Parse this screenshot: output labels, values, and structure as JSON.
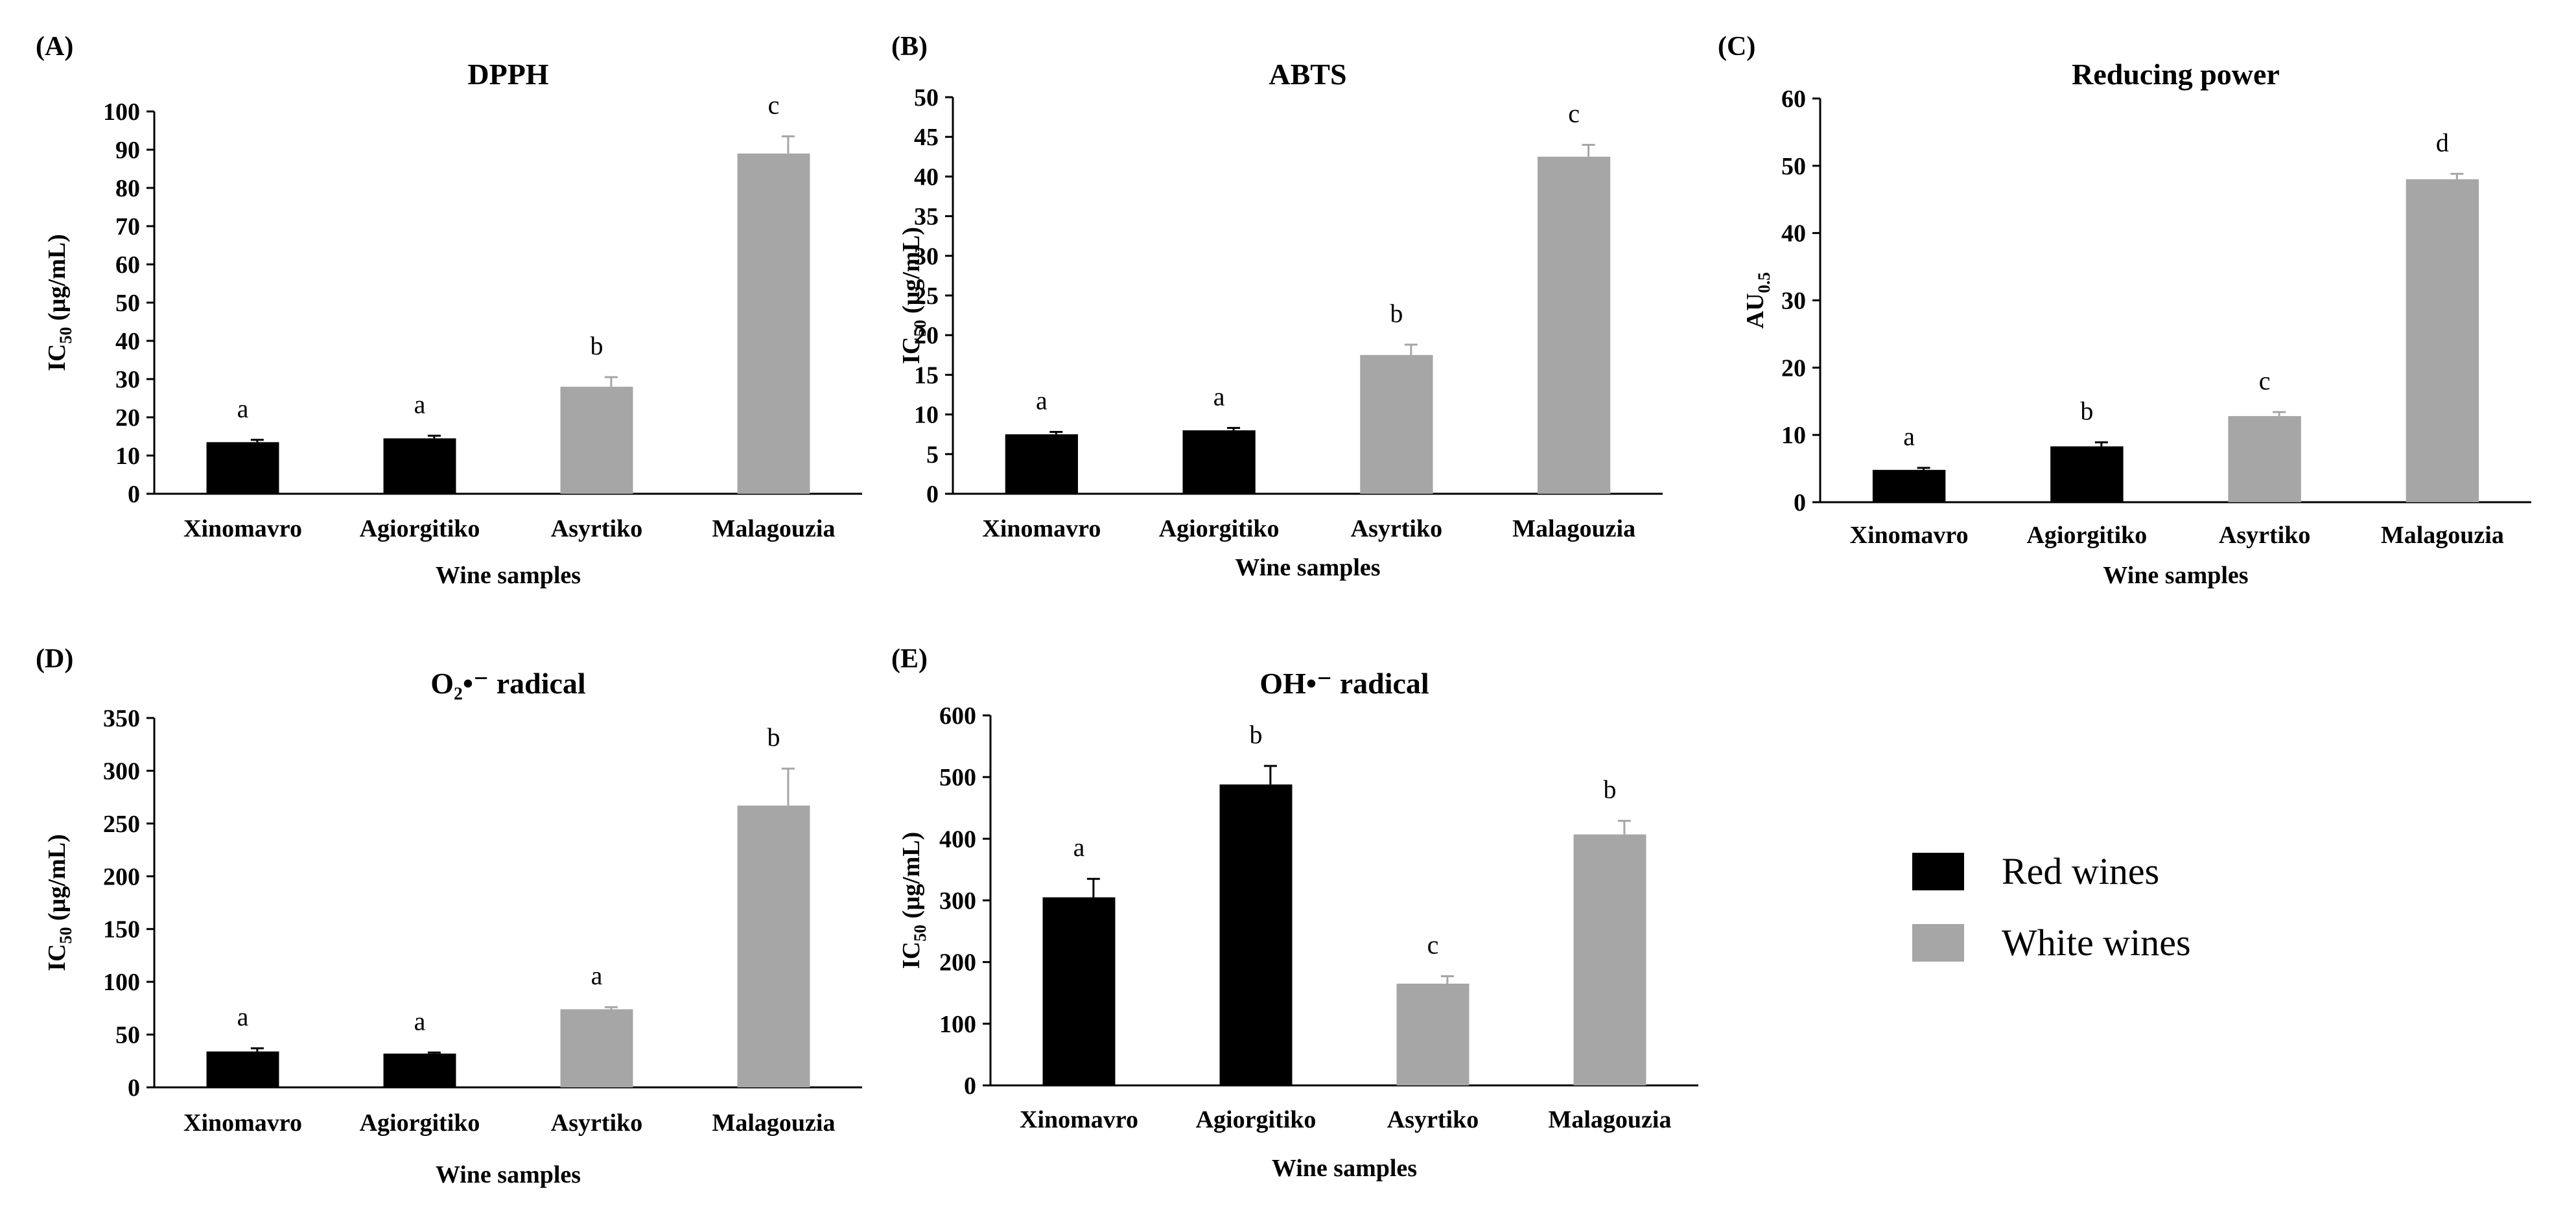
{
  "colors": {
    "red_wine": "#000000",
    "white_wine": "#a6a6a6",
    "axis": "#000000"
  },
  "legend": {
    "red_label": "Red wines",
    "white_label": "White wines"
  },
  "chart_data": [
    {
      "panel": "(A)",
      "type": "bar",
      "title": "DPPH",
      "ylabel_main": "IC",
      "ylabel_sub": "50",
      "ylabel_unit": " (µg/mL)",
      "xlabel": "Wine samples",
      "categories": [
        "Xinomavro",
        "Agiorgitiko",
        "Asyrtiko",
        "Malagouzia"
      ],
      "values": [
        13.5,
        14.5,
        28,
        89
      ],
      "errors": [
        0.6,
        0.7,
        2.5,
        4.5
      ],
      "letters": [
        "a",
        "a",
        "b",
        "c"
      ],
      "groups": [
        "red",
        "red",
        "white",
        "white"
      ],
      "ylim": [
        0,
        100
      ],
      "yticks": [
        0,
        10,
        20,
        30,
        40,
        50,
        60,
        70,
        80,
        90,
        100
      ]
    },
    {
      "panel": "(B)",
      "type": "bar",
      "title": "ABTS",
      "ylabel_main": "IC",
      "ylabel_sub": "50",
      "ylabel_unit": " (µg/mL)",
      "xlabel": "Wine samples",
      "categories": [
        "Xinomavro",
        "Agiorgitiko",
        "Asyrtiko",
        "Malagouzia"
      ],
      "values": [
        7.5,
        8.0,
        17.5,
        42.5
      ],
      "errors": [
        0.3,
        0.3,
        1.3,
        1.5
      ],
      "letters": [
        "a",
        "a",
        "b",
        "c"
      ],
      "groups": [
        "red",
        "red",
        "white",
        "white"
      ],
      "ylim": [
        0,
        50
      ],
      "yticks": [
        0,
        5,
        10,
        15,
        20,
        25,
        30,
        35,
        40,
        45,
        50
      ]
    },
    {
      "panel": "(C)",
      "type": "bar",
      "title": "Reducing power",
      "ylabel_main": "AU",
      "ylabel_sub": "0.5",
      "ylabel_unit": "",
      "xlabel": "Wine samples",
      "categories": [
        "Xinomavro",
        "Agiorgitiko",
        "Asyrtiko",
        "Malagouzia"
      ],
      "values": [
        4.8,
        8.3,
        12.8,
        48
      ],
      "errors": [
        0.3,
        0.6,
        0.6,
        0.8
      ],
      "letters": [
        "a",
        "b",
        "c",
        "d"
      ],
      "groups": [
        "red",
        "red",
        "white",
        "white"
      ],
      "ylim": [
        0,
        60
      ],
      "yticks": [
        0,
        10,
        20,
        30,
        40,
        50,
        60
      ]
    },
    {
      "panel": "(D)",
      "type": "bar",
      "title": "O₂•⁻ radical",
      "ylabel_main": "IC",
      "ylabel_sub": "50",
      "ylabel_unit": " (µg/mL)",
      "xlabel": "Wine samples",
      "categories": [
        "Xinomavro",
        "Agiorgitiko",
        "Asyrtiko",
        "Malagouzia"
      ],
      "values": [
        34,
        32,
        74,
        267
      ],
      "errors": [
        3,
        1,
        2,
        35
      ],
      "letters": [
        "a",
        "a",
        "a",
        "b"
      ],
      "groups": [
        "red",
        "red",
        "white",
        "white"
      ],
      "ylim": [
        0,
        350
      ],
      "yticks": [
        0,
        50,
        100,
        150,
        200,
        250,
        300,
        350
      ]
    },
    {
      "panel": "(E)",
      "type": "bar",
      "title": "OH•⁻ radical",
      "ylabel_main": "IC",
      "ylabel_sub": "50",
      "ylabel_unit": " (µg/mL)",
      "xlabel": "Wine samples",
      "categories": [
        "Xinomavro",
        "Agiorgitiko",
        "Asyrtiko",
        "Malagouzia"
      ],
      "values": [
        305,
        488,
        165,
        407
      ],
      "errors": [
        30,
        30,
        12,
        22
      ],
      "letters": [
        "a",
        "b",
        "c",
        "b"
      ],
      "groups": [
        "red",
        "red",
        "white",
        "white"
      ],
      "ylim": [
        0,
        600
      ],
      "yticks": [
        0,
        100,
        200,
        300,
        400,
        500,
        600
      ]
    }
  ]
}
